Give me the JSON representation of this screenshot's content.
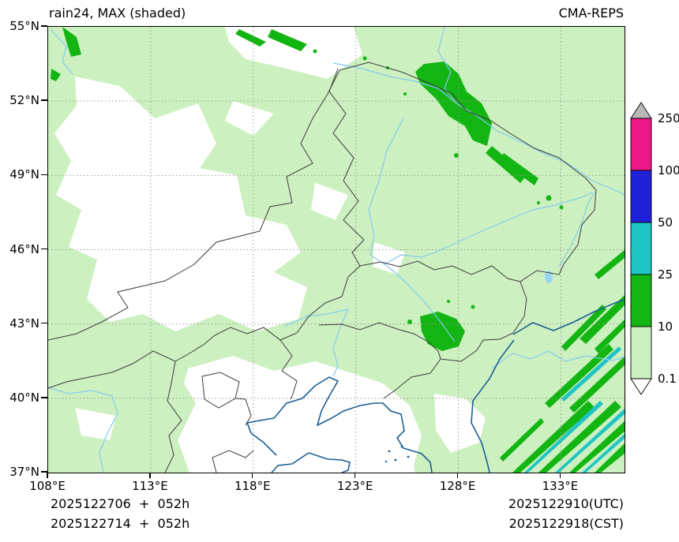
{
  "header": {
    "title": "rain24, MAX (shaded)",
    "model": "CMA-REPS"
  },
  "footer": {
    "left_line1": "2025122706  +  052h",
    "left_line2": "2025122714  +  052h",
    "right_line1": "2025122910(UTC)",
    "right_line2": "2025122918(CST)"
  },
  "chart_data": {
    "type": "heatmap",
    "title": "rain24, MAX (shaded)",
    "model": "CMA-REPS",
    "x_axis": {
      "ticks": [
        108,
        113,
        118,
        123,
        128,
        133
      ],
      "unit": "°E",
      "range": [
        108,
        136.1
      ]
    },
    "y_axis": {
      "ticks": [
        37,
        40,
        43,
        46,
        49,
        52,
        55
      ],
      "unit": "°N",
      "range": [
        37,
        55
      ]
    },
    "colorbar": {
      "levels": [
        0.1,
        10,
        25,
        50,
        100,
        250
      ],
      "colors": [
        "#ccf0bf",
        "#12b512",
        "#1fc4c4",
        "#2020d8",
        "#ec1784"
      ],
      "under_color": "#ffffff",
      "over_color": "#b8b8b8"
    },
    "map_layers": [
      "province boundaries",
      "national borders",
      "rivers",
      "coastline",
      "lat-lon dotted grid"
    ],
    "shaded_areas": [
      {
        "value_range_mm": "0.1-10",
        "description": "pale green covering most of the domain; white (no rain) over central Inner Mongolia, top-center strip, and Bohai / lower-center region"
      },
      {
        "value_range_mm": "10-25",
        "areas": [
          "small slashes NW corner ~108.5-109.5E / 53-55N",
          "slashes top-center ~117-121E / 54-55N",
          "large cluster ~126-129.5E / 50-53.5N with SE streaks to ~132E / 48N",
          "blob ~126-128.3E / 41.8-43.5N",
          "SW-NE oriented bands in SE corner ~130.5-136E / 37-42N",
          "bands at east edge ~133-136E / 42-46N"
        ]
      },
      {
        "value_range_mm": "25-50",
        "areas": [
          "thin cyan bands inside SE-corner cluster ~131-136E / 37-42N"
        ]
      }
    ]
  }
}
